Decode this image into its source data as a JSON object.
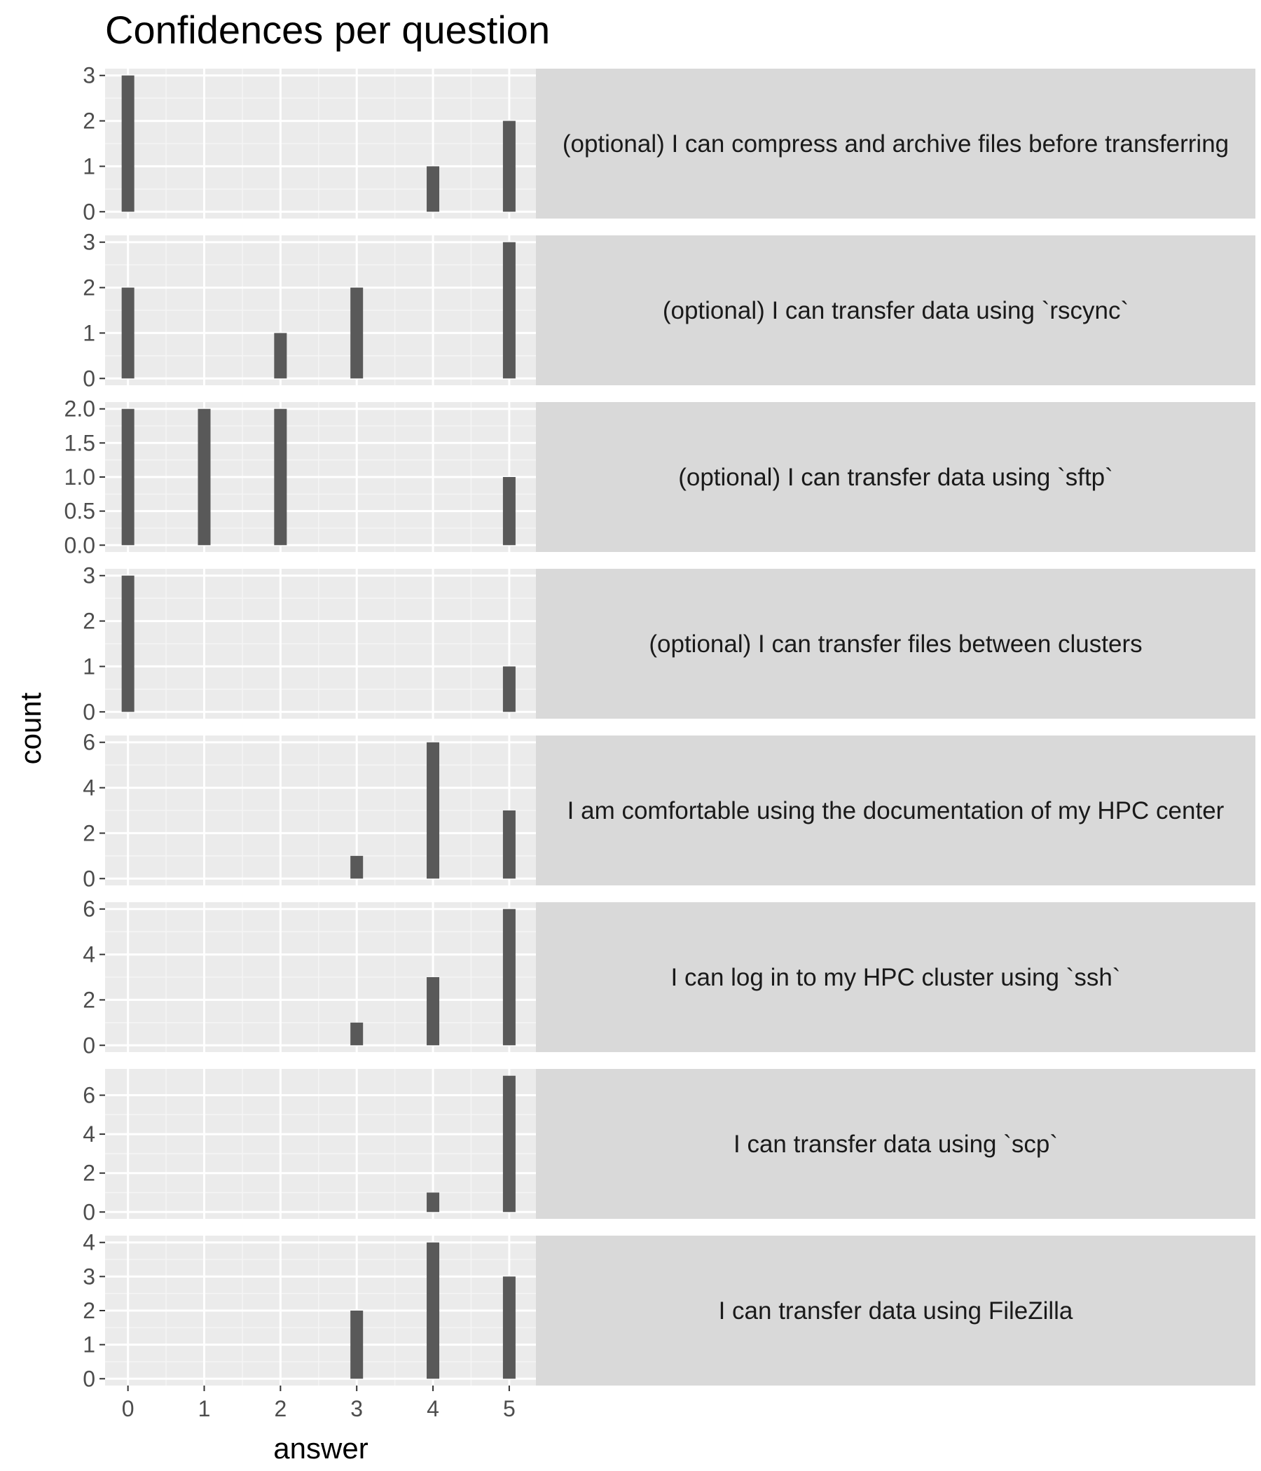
{
  "chart_data": {
    "type": "bar",
    "title": "Confidences per question",
    "xlabel": "answer",
    "ylabel": "count",
    "x_ticks": [
      0,
      1,
      2,
      3,
      4,
      5
    ],
    "xlim": [
      -0.3,
      5.35
    ],
    "colors": {
      "bar": "#595959",
      "panel": "#ebebeb",
      "strip": "#d9d9d9",
      "grid_major": "#ffffff",
      "grid_minor": "#f5f5f5",
      "tick": "#333333"
    },
    "facets": [
      {
        "label": "(optional) I can compress and archive files before transferring",
        "ylim": [
          -0.15,
          3.15
        ],
        "y_ticks": [
          0,
          1,
          2,
          3
        ],
        "y_tick_labels": [
          "0",
          "1",
          "2",
          "3"
        ],
        "bars": [
          {
            "x": 0,
            "count": 3
          },
          {
            "x": 4,
            "count": 1
          },
          {
            "x": 5,
            "count": 2
          }
        ]
      },
      {
        "label": "(optional) I can transfer data using `rscync`",
        "ylim": [
          -0.15,
          3.15
        ],
        "y_ticks": [
          0,
          1,
          2,
          3
        ],
        "y_tick_labels": [
          "0",
          "1",
          "2",
          "3"
        ],
        "bars": [
          {
            "x": 0,
            "count": 2
          },
          {
            "x": 2,
            "count": 1
          },
          {
            "x": 3,
            "count": 2
          },
          {
            "x": 5,
            "count": 3
          }
        ]
      },
      {
        "label": "(optional) I can transfer data using `sftp`",
        "ylim": [
          -0.1,
          2.1
        ],
        "y_ticks": [
          0,
          0.5,
          1,
          1.5,
          2
        ],
        "y_tick_labels": [
          "0.0",
          "0.5",
          "1.0",
          "1.5",
          "2.0"
        ],
        "bars": [
          {
            "x": 0,
            "count": 2
          },
          {
            "x": 1,
            "count": 2
          },
          {
            "x": 2,
            "count": 2
          },
          {
            "x": 5,
            "count": 1
          }
        ]
      },
      {
        "label": "(optional) I can transfer files between clusters",
        "ylim": [
          -0.15,
          3.15
        ],
        "y_ticks": [
          0,
          1,
          2,
          3
        ],
        "y_tick_labels": [
          "0",
          "1",
          "2",
          "3"
        ],
        "bars": [
          {
            "x": 0,
            "count": 3
          },
          {
            "x": 5,
            "count": 1
          }
        ]
      },
      {
        "label": "I am comfortable using the documentation of my HPC center",
        "ylim": [
          -0.3,
          6.3
        ],
        "y_ticks": [
          0,
          2,
          4,
          6
        ],
        "y_tick_labels": [
          "0",
          "2",
          "4",
          "6"
        ],
        "bars": [
          {
            "x": 3,
            "count": 1
          },
          {
            "x": 4,
            "count": 6
          },
          {
            "x": 5,
            "count": 3
          }
        ]
      },
      {
        "label": "I can log in to my HPC cluster using `ssh`",
        "ylim": [
          -0.3,
          6.3
        ],
        "y_ticks": [
          0,
          2,
          4,
          6
        ],
        "y_tick_labels": [
          "0",
          "2",
          "4",
          "6"
        ],
        "bars": [
          {
            "x": 3,
            "count": 1
          },
          {
            "x": 4,
            "count": 3
          },
          {
            "x": 5,
            "count": 6
          }
        ]
      },
      {
        "label": "I can transfer data using `scp`",
        "ylim": [
          -0.35,
          7.35
        ],
        "y_ticks": [
          0,
          2,
          4,
          6
        ],
        "y_tick_labels": [
          "0",
          "2",
          "4",
          "6"
        ],
        "bars": [
          {
            "x": 4,
            "count": 1
          },
          {
            "x": 5,
            "count": 7
          }
        ]
      },
      {
        "label": "I can transfer data using FileZilla",
        "ylim": [
          -0.2,
          4.2
        ],
        "y_ticks": [
          0,
          1,
          2,
          3,
          4
        ],
        "y_tick_labels": [
          "0",
          "1",
          "2",
          "3",
          "4"
        ],
        "bars": [
          {
            "x": 3,
            "count": 2
          },
          {
            "x": 4,
            "count": 4
          },
          {
            "x": 5,
            "count": 3
          }
        ]
      }
    ]
  }
}
